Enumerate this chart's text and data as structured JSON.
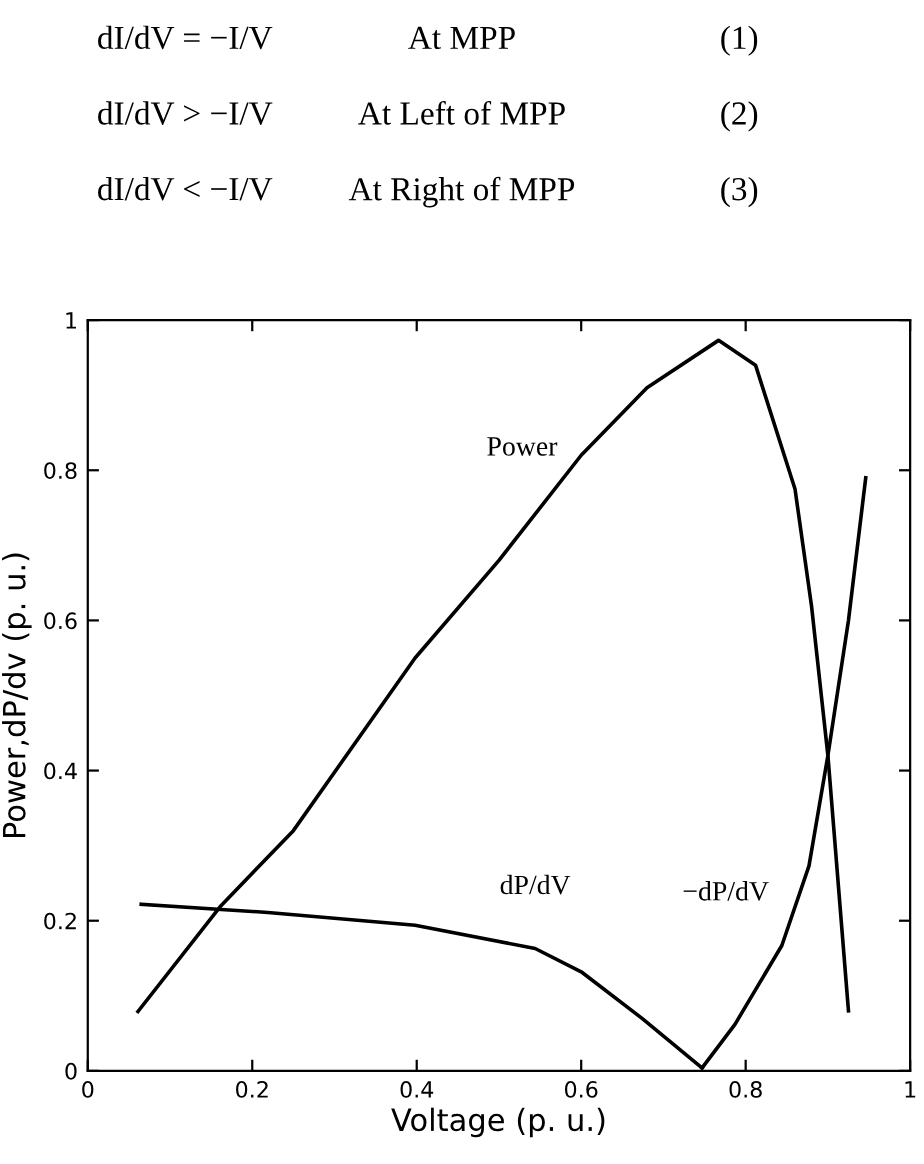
{
  "chart_data": {
    "type": "line",
    "xlabel": "Voltage (p. u.)",
    "ylabel": "Power,dP/dv (p. u.)",
    "xlim": [
      0,
      1
    ],
    "ylim": [
      0,
      1
    ],
    "xticks": [
      0,
      0.2,
      0.4,
      0.6,
      0.8,
      1
    ],
    "yticks": [
      0,
      0.2,
      0.4,
      0.6,
      0.8,
      1
    ],
    "grid": false,
    "legend": false,
    "marker": "none",
    "line_style": "solid",
    "series": [
      {
        "name": "Power",
        "color": "#000000",
        "x": [
          0.061,
          0.162,
          0.25,
          0.398,
          0.5,
          0.6,
          0.68,
          0.767,
          0.812,
          0.86,
          0.88,
          0.9,
          0.925
        ],
        "values": [
          0.079,
          0.22,
          0.32,
          0.55,
          0.68,
          0.82,
          0.91,
          0.973,
          0.94,
          0.775,
          0.62,
          0.42,
          0.08
        ]
      },
      {
        "name": "dP/dV",
        "color": "#000000",
        "x": [
          0.065,
          0.219,
          0.398,
          0.544,
          0.6,
          0.674,
          0.747
        ],
        "values": [
          0.222,
          0.211,
          0.194,
          0.163,
          0.132,
          0.07,
          0.004
        ]
      },
      {
        "name": "−dP/dV",
        "color": "#000000",
        "x": [
          0.747,
          0.787,
          0.844,
          0.877,
          0.9,
          0.925,
          0.946
        ],
        "values": [
          0.004,
          0.062,
          0.167,
          0.273,
          0.42,
          0.6,
          0.79
        ]
      }
    ],
    "annotations": [
      "dI/dV = −I/V",
      "At MPP",
      "(1)",
      "dI/dV > −I/V",
      "At Left of MPP",
      "(2)",
      "dI/dV < −I/V",
      "At Right of MPP",
      "(3)"
    ]
  }
}
